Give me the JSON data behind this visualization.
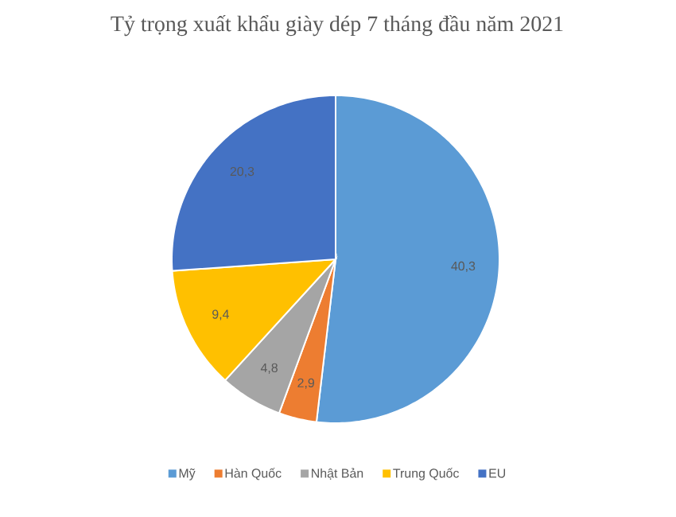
{
  "chart_data": {
    "type": "pie",
    "title": "Tỷ trọng xuất khẩu giày dép 7 tháng đầu năm 2021",
    "categories": [
      "Mỹ",
      "Hàn Quốc",
      "Nhật Bản",
      "Trung Quốc",
      "EU"
    ],
    "values": [
      40.3,
      2.9,
      4.8,
      9.4,
      20.3
    ],
    "colors": [
      "#5b9bd5",
      "#ed7d31",
      "#a5a5a5",
      "#ffc000",
      "#4472c4"
    ],
    "value_labels": [
      "40,3",
      "2,9",
      "4,8",
      "9,4",
      "20,3"
    ],
    "legend": "bottom"
  }
}
